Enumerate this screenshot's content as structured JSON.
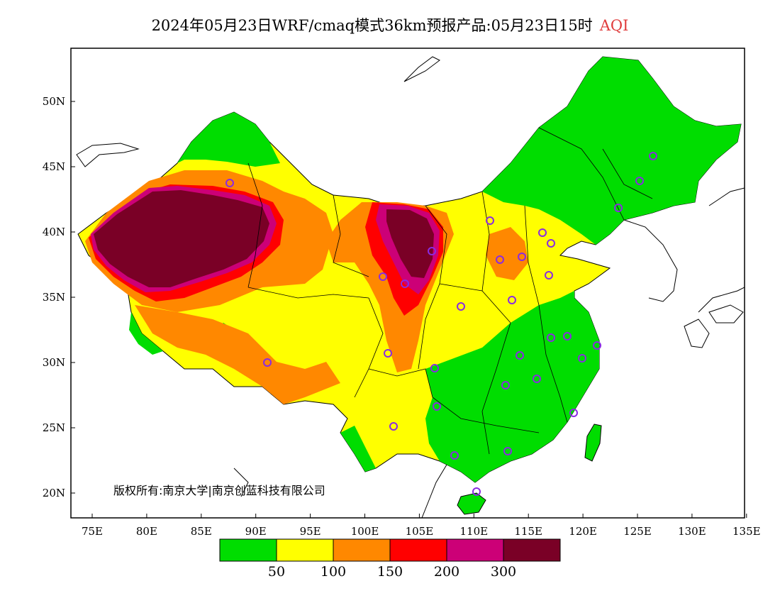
{
  "map": {
    "title_main": "2024年05月23日WRF/cmaq模式36km预报产品:05月23日15时",
    "title_variable": "AQI",
    "copyright": "版权所有:南京大学|南京创蓝科技有限公司",
    "lat_labels": [
      "50N",
      "45N",
      "40N",
      "35N",
      "30N",
      "25N",
      "20N"
    ],
    "lon_labels": [
      "75E",
      "80E",
      "85E",
      "90E",
      "95E",
      "100E",
      "105E",
      "110E",
      "115E",
      "120E",
      "125E",
      "130E",
      "135E"
    ],
    "colorbar": {
      "colors": [
        "#00dd00",
        "#ffff00",
        "#ff8800",
        "#ff0000",
        "#cc0077",
        "#7a0026"
      ],
      "labels": [
        "50",
        "100",
        "150",
        "200",
        "300"
      ]
    },
    "station_marker_color": "#8a2be2"
  }
}
